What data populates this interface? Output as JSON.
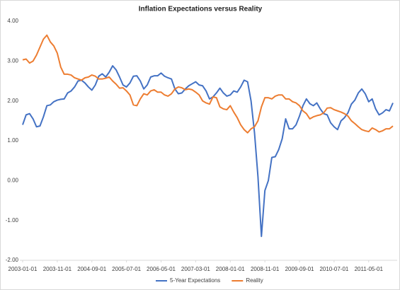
{
  "chart_data": {
    "type": "line",
    "title": "Inflation Expectations versus Reality",
    "categories": [
      "2003-01-01",
      null,
      null,
      null,
      null,
      null,
      null,
      null,
      null,
      null,
      "2003-11-01",
      null,
      null,
      null,
      null,
      null,
      null,
      null,
      null,
      null,
      "2004-09-01",
      null,
      null,
      null,
      null,
      null,
      null,
      null,
      null,
      null,
      "2005-07-01",
      null,
      null,
      null,
      null,
      null,
      null,
      null,
      null,
      null,
      "2006-05-01",
      null,
      null,
      null,
      null,
      null,
      null,
      null,
      null,
      null,
      "2007-03-01",
      null,
      null,
      null,
      null,
      null,
      null,
      null,
      null,
      null,
      "2008-01-01",
      null,
      null,
      null,
      null,
      null,
      null,
      null,
      null,
      null,
      "2008-11-01",
      null,
      null,
      null,
      null,
      null,
      null,
      null,
      null,
      null,
      "2009-09-01",
      null,
      null,
      null,
      null,
      null,
      null,
      null,
      null,
      null,
      "2010-07-01",
      null,
      null,
      null,
      null,
      null,
      null,
      null,
      null,
      null,
      "2011-05-01",
      null,
      null,
      null,
      null,
      null,
      null,
      null
    ],
    "series": [
      {
        "name": "5-Year Expectations",
        "color": "#4472c4",
        "values": [
          1.4,
          1.65,
          1.68,
          1.55,
          1.35,
          1.37,
          1.6,
          1.88,
          1.9,
          1.98,
          2.02,
          2.04,
          2.05,
          2.2,
          2.25,
          2.35,
          2.5,
          2.52,
          2.45,
          2.35,
          2.27,
          2.4,
          2.62,
          2.68,
          2.6,
          2.72,
          2.88,
          2.78,
          2.6,
          2.4,
          2.35,
          2.45,
          2.62,
          2.63,
          2.5,
          2.3,
          2.4,
          2.6,
          2.63,
          2.63,
          2.7,
          2.62,
          2.58,
          2.55,
          2.3,
          2.18,
          2.2,
          2.3,
          2.38,
          2.43,
          2.48,
          2.4,
          2.38,
          2.25,
          2.05,
          2.1,
          2.2,
          2.32,
          2.2,
          2.12,
          2.15,
          2.25,
          2.22,
          2.35,
          2.52,
          2.48,
          2.0,
          1.2,
          0.1,
          -1.4,
          -0.25,
          0.0,
          0.58,
          0.6,
          0.78,
          1.05,
          1.55,
          1.3,
          1.3,
          1.4,
          1.62,
          1.88,
          2.05,
          1.93,
          1.88,
          1.95,
          1.8,
          1.68,
          1.65,
          1.45,
          1.35,
          1.28,
          1.5,
          1.58,
          1.7,
          1.92,
          2.02,
          2.2,
          2.3,
          2.18,
          1.98,
          2.05,
          1.8,
          1.65,
          1.7,
          1.78,
          1.75,
          1.95
        ]
      },
      {
        "name": "Reality",
        "color": "#ed7d31",
        "values": [
          3.03,
          3.05,
          2.95,
          3.0,
          3.15,
          3.35,
          3.55,
          3.65,
          3.48,
          3.38,
          3.2,
          2.85,
          2.67,
          2.67,
          2.65,
          2.58,
          2.55,
          2.52,
          2.58,
          2.6,
          2.65,
          2.62,
          2.55,
          2.55,
          2.57,
          2.6,
          2.5,
          2.42,
          2.32,
          2.33,
          2.25,
          2.15,
          1.9,
          1.88,
          2.05,
          2.18,
          2.15,
          2.25,
          2.28,
          2.22,
          2.22,
          2.15,
          2.12,
          2.18,
          2.3,
          2.35,
          2.33,
          2.28,
          2.3,
          2.28,
          2.22,
          2.15,
          2.0,
          1.95,
          1.92,
          2.1,
          2.08,
          1.85,
          1.8,
          1.78,
          1.88,
          1.72,
          1.58,
          1.4,
          1.28,
          1.2,
          1.3,
          1.35,
          1.5,
          1.85,
          2.08,
          2.08,
          2.05,
          2.12,
          2.15,
          2.15,
          2.05,
          2.05,
          1.98,
          1.95,
          1.88,
          1.75,
          1.68,
          1.55,
          1.6,
          1.63,
          1.65,
          1.7,
          1.82,
          1.83,
          1.78,
          1.75,
          1.72,
          1.68,
          1.62,
          1.5,
          1.43,
          1.35,
          1.28,
          1.25,
          1.23,
          1.32,
          1.28,
          1.22,
          1.25,
          1.3,
          1.3,
          1.37
        ]
      }
    ],
    "ylim": [
      -2,
      4
    ],
    "yticks": [
      {
        "value": -2,
        "label": "-2.00"
      },
      {
        "value": -1,
        "label": "-1.00"
      },
      {
        "value": 0,
        "label": "0.00"
      },
      {
        "value": 1,
        "label": "1.00"
      },
      {
        "value": 2,
        "label": "2.00"
      },
      {
        "value": 3,
        "label": "3.00"
      },
      {
        "value": 4,
        "label": "4.00"
      }
    ],
    "legend": "bottom"
  }
}
